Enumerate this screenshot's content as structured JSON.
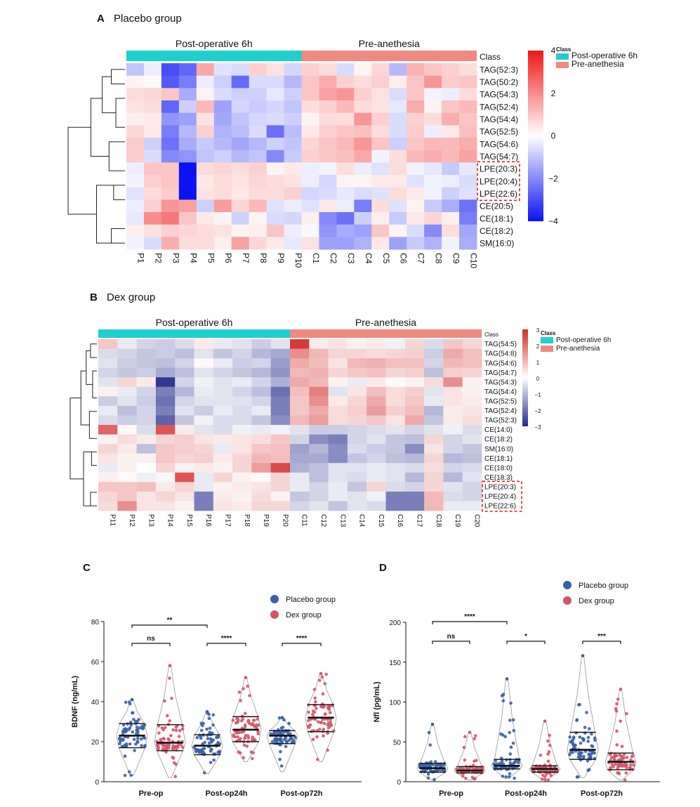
{
  "panels": {
    "A": {
      "letter": "A",
      "title": "Placebo group"
    },
    "B": {
      "letter": "B",
      "title": "Dex group"
    },
    "C": {
      "letter": "C"
    },
    "D": {
      "letter": "D"
    }
  },
  "colors": {
    "post_op": "#1fcfcf",
    "pre_an": "#f08a80",
    "placebo_dot": "#3a5fa6",
    "dex_dot": "#d0566a",
    "heat_low_A": "#0a13f2",
    "heat_high_A": "#f01616",
    "heat_low_B": "#222a8a",
    "heat_high_B": "#d42b2b",
    "highlight_box": "#e02020"
  },
  "chart_data": [
    {
      "type": "heatmap",
      "panel": "A",
      "title": "Placebo group",
      "groups": [
        "Post-operative 6h",
        "Pre-anethesia"
      ],
      "class_label": "Class",
      "legend_title": "Class",
      "legend_entries": [
        "Post-operative 6h",
        "Pre-anethesia"
      ],
      "colorbar_ticks": [
        4,
        2,
        0,
        -2,
        -4
      ],
      "vmin": -4,
      "vmax": 4,
      "rows": [
        "TAG(52:3)",
        "TAG(50:2)",
        "TAG(54:3)",
        "TAG(52:4)",
        "TAG(54:4)",
        "TAG(52:5)",
        "TAG(54:6)",
        "TAG(54:7)",
        "LPE(20:3)",
        "LPE(20:4)",
        "LPE(22:6)",
        "CE(20:5)",
        "CE(18:1)",
        "CE(18:2)",
        "SM(16:0)"
      ],
      "highlighted_rows": [
        "LPE(20:3)",
        "LPE(20:4)",
        "LPE(22:6)"
      ],
      "columns": [
        "P1",
        "P2",
        "P3",
        "P4",
        "P5",
        "P6",
        "P7",
        "P8",
        "P9",
        "P10",
        "C1",
        "C2",
        "C3",
        "C4",
        "C5",
        "C6",
        "C7",
        "C8",
        "C9",
        "C10"
      ],
      "values": [
        [
          -1.0,
          -0.3,
          -3.0,
          -2.6,
          1.5,
          -0.5,
          -0.6,
          0.8,
          0.5,
          -0.7,
          0.8,
          0.6,
          -0.6,
          0.2,
          0.7,
          -1.2,
          1.3,
          1.0,
          0.8,
          0.6
        ],
        [
          0.2,
          0.1,
          -2.8,
          -2.2,
          -0.3,
          -0.8,
          -2.5,
          -0.6,
          -0.6,
          -1.2,
          1.0,
          1.4,
          0.8,
          0.6,
          0.8,
          0.3,
          1.0,
          1.8,
          0.9,
          1.0
        ],
        [
          0.6,
          0.7,
          1.0,
          -1.4,
          0.2,
          -0.6,
          -0.8,
          -0.8,
          -0.4,
          -0.8,
          1.0,
          1.6,
          1.8,
          0.8,
          0.5,
          -0.6,
          1.0,
          -0.2,
          -0.3,
          0.6
        ],
        [
          0.5,
          0.6,
          -2.6,
          -0.8,
          1.2,
          -1.6,
          -0.7,
          -0.9,
          -0.7,
          -1.0,
          0.6,
          0.8,
          1.2,
          0.6,
          0.5,
          -0.4,
          1.4,
          0.2,
          1.0,
          1.2
        ],
        [
          0.3,
          0.4,
          -1.8,
          -1.6,
          0.5,
          -1.5,
          -1.0,
          -0.7,
          -0.6,
          -0.8,
          0.2,
          0.6,
          0.6,
          1.8,
          0.8,
          -0.6,
          0.8,
          0.6,
          1.4,
          1.0
        ],
        [
          0.7,
          0.4,
          -2.2,
          -1.2,
          0.8,
          -1.3,
          -1.1,
          -0.6,
          -2.4,
          -1.1,
          0.4,
          0.8,
          1.0,
          1.1,
          0.6,
          -0.6,
          0.9,
          -0.3,
          0.4,
          1.1
        ],
        [
          0.9,
          -0.8,
          -2.4,
          -1.4,
          -0.9,
          -1.2,
          -1.5,
          -1.2,
          -0.8,
          -1.0,
          0.7,
          1.0,
          1.2,
          1.8,
          1.0,
          -0.8,
          1.0,
          1.2,
          1.2,
          1.4
        ],
        [
          0.9,
          -0.6,
          -2.0,
          -1.8,
          -1.0,
          -0.8,
          -1.2,
          -1.0,
          -2.0,
          -0.9,
          0.8,
          1.0,
          1.1,
          1.5,
          -0.2,
          0.6,
          1.2,
          1.4,
          1.2,
          1.6
        ],
        [
          -0.3,
          1.0,
          1.0,
          -4.0,
          0.6,
          0.7,
          0.6,
          0.8,
          0.2,
          0.4,
          -0.3,
          -0.2,
          0.6,
          -0.3,
          -0.5,
          0.6,
          -0.2,
          -0.4,
          -0.9,
          -0.4
        ],
        [
          -0.2,
          0.8,
          1.0,
          -4.0,
          0.4,
          0.6,
          0.5,
          0.7,
          0.6,
          0.5,
          -0.3,
          -0.7,
          0.2,
          0.2,
          0.4,
          0.4,
          -0.5,
          -0.2,
          -0.3,
          -0.6
        ],
        [
          -0.5,
          0.6,
          0.9,
          -4.0,
          0.5,
          0.6,
          0.4,
          0.6,
          0.6,
          0.8,
          -0.7,
          -0.6,
          -0.4,
          -0.6,
          -0.5,
          0.6,
          0.4,
          -0.2,
          -0.8,
          -0.5
        ],
        [
          -0.3,
          0.8,
          1.8,
          1.6,
          -0.8,
          1.7,
          0.7,
          1.2,
          -0.5,
          -0.3,
          -0.5,
          0.4,
          -0.3,
          -2.2,
          0.6,
          -0.5,
          0.2,
          -0.9,
          -1.4,
          -2.4
        ],
        [
          -0.4,
          2.0,
          2.3,
          1.0,
          0.4,
          0.2,
          -0.8,
          0.2,
          -0.6,
          -0.7,
          0.3,
          -2.0,
          -2.4,
          -0.8,
          0.3,
          -0.9,
          0.4,
          0.7,
          0.3,
          -2.2
        ],
        [
          0.3,
          0.5,
          0.8,
          0.7,
          0.6,
          0.5,
          0.2,
          0.3,
          1.0,
          -0.3,
          -0.1,
          -1.8,
          -1.4,
          -1.6,
          1.0,
          0.2,
          -0.6,
          -2.0,
          0.6,
          -1.5
        ],
        [
          -0.2,
          -0.6,
          1.4,
          0.6,
          0.6,
          0.3,
          1.6,
          0.7,
          0.4,
          -0.4,
          0.5,
          -1.6,
          -1.6,
          -1.3,
          0.4,
          -1.6,
          -0.9,
          -1.3,
          -0.2,
          -1.4
        ]
      ]
    },
    {
      "type": "heatmap",
      "panel": "B",
      "title": "Dex group",
      "groups": [
        "Post-operative 6h",
        "Pre-anethesia"
      ],
      "class_label": "Class",
      "legend_title": "Class",
      "legend_entries": [
        "Post-operative 6h",
        "Pre-anethesia"
      ],
      "colorbar_ticks": [
        3,
        2,
        1,
        0,
        -1,
        -2,
        -3
      ],
      "vmin": -3,
      "vmax": 3,
      "rows": [
        "TAG(54:5)",
        "TAG(54:8)",
        "TAG(54:6)",
        "TAG(54:7)",
        "TAG(54:3)",
        "TAG(54:4)",
        "TAG(52:5)",
        "TAG(52:4)",
        "TAG(52:3)",
        "CE(14:0)",
        "CE(18:2)",
        "SM(16:0)",
        "CE(18:1)",
        "CE(18:0)",
        "CE(18:3)",
        "LPE(20:3)",
        "LPE(20:4)",
        "LPE(22:6)"
      ],
      "highlighted_rows": [
        "LPE(20:3)",
        "LPE(20:4)",
        "LPE(22:6)"
      ],
      "columns": [
        "P11",
        "P12",
        "P13",
        "P14",
        "P15",
        "P16",
        "P17",
        "P18",
        "P19",
        "P20",
        "C11",
        "C12",
        "C13",
        "C14",
        "C15",
        "C16",
        "C17",
        "C18",
        "C19",
        "C20"
      ],
      "values": [
        [
          0.8,
          -0.3,
          -0.6,
          -0.7,
          -0.5,
          0.3,
          -0.3,
          -0.4,
          -0.7,
          -0.4,
          2.8,
          0.3,
          0.4,
          0.2,
          0.3,
          -0.2,
          0.6,
          -0.5,
          0.8,
          0.6
        ],
        [
          -0.5,
          -0.6,
          -0.8,
          -0.7,
          -0.9,
          -0.4,
          -0.8,
          -0.6,
          -1.0,
          -1.2,
          1.6,
          1.0,
          0.6,
          0.6,
          0.5,
          0.6,
          0.7,
          -0.7,
          1.2,
          0.9
        ],
        [
          -0.4,
          -0.7,
          -0.8,
          -0.9,
          -0.6,
          0.1,
          -0.3,
          -0.7,
          -0.6,
          -1.4,
          1.2,
          0.9,
          0.4,
          1.0,
          1.1,
          0.9,
          0.9,
          -0.6,
          1.0,
          0.9
        ],
        [
          -0.6,
          -0.8,
          -0.7,
          -1.2,
          -0.9,
          -0.4,
          -0.6,
          -0.8,
          -1.0,
          -1.5,
          1.0,
          1.1,
          0.6,
          0.8,
          0.9,
          0.6,
          0.7,
          -0.9,
          0.7,
          0.6
        ],
        [
          -0.4,
          0.6,
          0.3,
          -2.8,
          -0.6,
          -0.2,
          -0.4,
          -0.3,
          -0.6,
          -1.1,
          1.2,
          1.0,
          0.2,
          -0.3,
          0.3,
          0.1,
          0.2,
          0.5,
          1.6,
          0.2
        ],
        [
          0.2,
          -0.3,
          -0.6,
          -1.8,
          -1.0,
          -0.3,
          -0.4,
          -0.6,
          -0.9,
          -2.0,
          0.9,
          1.8,
          -0.4,
          0.4,
          0.9,
          0.5,
          0.7,
          -0.4,
          0.4,
          0.2
        ],
        [
          -0.7,
          -0.4,
          -0.7,
          -2.0,
          -0.6,
          -0.4,
          -0.4,
          -0.4,
          -0.6,
          -1.8,
          0.8,
          1.6,
          0.3,
          0.6,
          1.2,
          0.5,
          0.8,
          -0.3,
          0.4,
          0.3
        ],
        [
          -0.3,
          -0.9,
          -0.6,
          -1.8,
          -0.4,
          -0.7,
          -0.3,
          -0.5,
          -0.3,
          -1.8,
          0.8,
          1.2,
          0.5,
          0.7,
          1.4,
          0.7,
          0.9,
          -1.0,
          0.3,
          0.4
        ],
        [
          -0.5,
          -0.7,
          -0.6,
          -2.2,
          -0.8,
          -0.2,
          -0.5,
          -0.5,
          -0.8,
          -1.6,
          1.0,
          1.4,
          0.5,
          0.6,
          0.8,
          0.4,
          1.2,
          -0.8,
          0.3,
          0.5
        ],
        [
          2.2,
          0.1,
          -0.5,
          2.4,
          0.3,
          -0.4,
          -0.5,
          -0.2,
          -0.3,
          -0.2,
          -0.4,
          -0.7,
          -0.7,
          -0.6,
          -0.5,
          -0.4,
          -0.6,
          -0.4,
          -0.2,
          -0.5
        ],
        [
          0.2,
          0.5,
          0.3,
          0.6,
          0.7,
          0.4,
          0.3,
          0.4,
          0.5,
          0.8,
          -0.6,
          -1.6,
          -1.8,
          -0.6,
          -0.4,
          -0.8,
          -0.9,
          0.6,
          -0.6,
          -0.4
        ],
        [
          0.6,
          0.3,
          -0.9,
          0.8,
          0.7,
          0.6,
          -0.3,
          0.4,
          0.8,
          0.9,
          -1.3,
          -1.0,
          -1.6,
          -0.5,
          -0.7,
          -0.8,
          -1.6,
          0.4,
          -0.6,
          -0.8
        ],
        [
          0.4,
          0.2,
          0.2,
          0.8,
          0.6,
          0.7,
          0.3,
          0.6,
          1.0,
          0.9,
          -1.2,
          -1.2,
          -1.6,
          -0.8,
          -0.6,
          -0.9,
          -1.0,
          0.6,
          -1.0,
          -0.9
        ],
        [
          -0.3,
          0.2,
          0.0,
          0.6,
          0.2,
          0.3,
          0.2,
          0.6,
          1.4,
          2.6,
          -1.1,
          -0.9,
          -0.4,
          -0.4,
          -0.3,
          -0.4,
          -0.5,
          0.5,
          -0.6,
          -0.5
        ],
        [
          0.2,
          0.1,
          -0.2,
          -0.1,
          2.4,
          -0.3,
          0.6,
          0.2,
          0.1,
          0.6,
          -0.3,
          -0.9,
          -0.4,
          -0.5,
          -0.3,
          -0.4,
          -1.0,
          0.6,
          -1.0,
          -0.4
        ],
        [
          0.8,
          0.8,
          0.9,
          0.3,
          0.6,
          -0.3,
          0.2,
          0.3,
          0.4,
          0.6,
          -0.3,
          -0.6,
          -0.3,
          -0.8,
          0.6,
          -0.5,
          -0.6,
          0.6,
          -0.4,
          -0.6
        ],
        [
          0.6,
          0.8,
          0.4,
          0.6,
          0.4,
          -1.8,
          0.3,
          0.2,
          0.5,
          0.2,
          -0.8,
          -0.6,
          -0.3,
          -0.4,
          -0.2,
          -1.8,
          -1.8,
          1.0,
          -0.5,
          -0.6
        ],
        [
          0.5,
          1.6,
          0.4,
          0.4,
          0.2,
          -1.8,
          0.4,
          0.3,
          0.6,
          0.6,
          -0.6,
          -0.4,
          -0.8,
          -0.4,
          -0.5,
          -1.8,
          -1.8,
          1.0,
          -0.3,
          -0.3
        ]
      ]
    },
    {
      "type": "scatter",
      "panel": "C",
      "subtype": "violin-dot",
      "ylabel": "BDNF (ng/mL)",
      "ylim": [
        0,
        80
      ],
      "yticks": [
        0,
        20,
        40,
        60,
        80
      ],
      "categories": [
        "Pre-op",
        "Post-op24h",
        "Post-op72h"
      ],
      "series": [
        {
          "name": "Placebo group",
          "min": [
            3,
            4,
            5
          ],
          "q1": [
            17,
            13.5,
            19
          ],
          "median": [
            23,
            18,
            23
          ],
          "q3": [
            29,
            23.5,
            25.5
          ],
          "max": [
            41,
            35,
            32
          ]
        },
        {
          "name": "Dex group",
          "min": [
            2,
            10,
            10
          ],
          "q1": [
            15.5,
            20,
            25
          ],
          "median": [
            19.5,
            26,
            32
          ],
          "q3": [
            28.5,
            32.5,
            38.5
          ],
          "max": [
            58,
            52,
            54
          ]
        }
      ],
      "significance": [
        {
          "label": "**",
          "pair": [
            "Pre-op Placebo group",
            "Post-op24h Placebo group"
          ]
        },
        {
          "label": "ns",
          "pair": [
            "Pre-op Placebo group",
            "Pre-op Dex group"
          ]
        },
        {
          "label": "****",
          "pair": [
            "Post-op24h Placebo group",
            "Post-op24h Dex group"
          ]
        },
        {
          "label": "****",
          "pair": [
            "Post-op72h Placebo group",
            "Post-op72h Dex group"
          ]
        }
      ],
      "legend": [
        "Placebo group",
        "Dex group"
      ]
    },
    {
      "type": "scatter",
      "panel": "D",
      "subtype": "violin-dot",
      "ylabel": "Nfl (pg/mL)",
      "ylim": [
        0,
        200
      ],
      "yticks": [
        0,
        50,
        100,
        150,
        200
      ],
      "categories": [
        "Pre-op",
        "Post-op24h",
        "Post-op72h"
      ],
      "series": [
        {
          "name": "Placebo group",
          "min": [
            2,
            4,
            5
          ],
          "q1": [
            12,
            16,
            28
          ],
          "median": [
            17,
            20,
            40
          ],
          "q3": [
            23,
            28,
            62
          ],
          "max": [
            72,
            129,
            158
          ]
        },
        {
          "name": "Dex group",
          "min": [
            2,
            2,
            2
          ],
          "q1": [
            11,
            12,
            15
          ],
          "median": [
            14,
            16,
            25
          ],
          "q3": [
            19,
            20,
            36
          ],
          "max": [
            62,
            76,
            116
          ]
        }
      ],
      "significance": [
        {
          "label": "****",
          "pair": [
            "Pre-op Placebo group",
            "Post-op24h Placebo group"
          ]
        },
        {
          "label": "ns",
          "pair": [
            "Pre-op Placebo group",
            "Pre-op Dex group"
          ]
        },
        {
          "label": "*",
          "pair": [
            "Post-op24h Placebo group",
            "Post-op24h Dex group"
          ]
        },
        {
          "label": "***",
          "pair": [
            "Post-op72h Placebo group",
            "Post-op72h Dex group"
          ]
        }
      ],
      "legend": [
        "Placebo group",
        "Dex group"
      ]
    }
  ]
}
